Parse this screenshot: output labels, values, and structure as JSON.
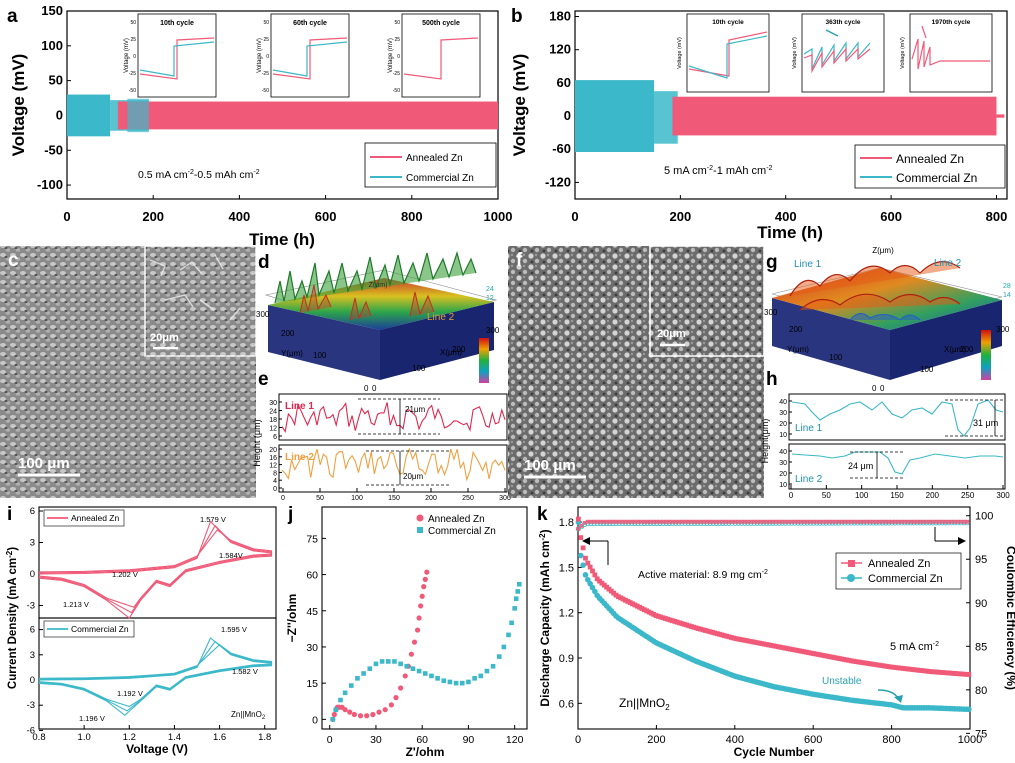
{
  "panels": {
    "a": "a",
    "b": "b",
    "c": "c",
    "d": "d",
    "e": "e",
    "f": "f",
    "g": "g",
    "h": "h",
    "i": "i",
    "j": "j",
    "k": "k"
  },
  "colors": {
    "annealed": "#f05a78",
    "commercial": "#3bb8c9",
    "line2": "#f0a040"
  },
  "chart_data": [
    {
      "id": "a",
      "type": "line",
      "xlabel": "Time (h)",
      "ylabel": "Voltage (mV)",
      "xticks": [
        0,
        200,
        400,
        600,
        800,
        1000
      ],
      "yticks": [
        -100,
        -50,
        0,
        50,
        100,
        150
      ],
      "xlim": [
        0,
        1000
      ],
      "ylim": [
        -120,
        150
      ],
      "legend": [
        "Annealed Zn",
        "Commercial Zn"
      ],
      "annotation": {
        "prefix": "0.5 mA cm",
        "sup1": "-2",
        "mid": "-0.5 mAh cm",
        "sup2": "-2"
      },
      "insets": [
        {
          "title": "10th cycle",
          "ylabel": "Voltage (mV)",
          "yticks": [
            "50",
            "25",
            "0",
            "-25",
            "-50"
          ]
        },
        {
          "title": "60th cycle",
          "ylabel": "Voltage (mV)",
          "yticks": [
            "50",
            "25",
            "0",
            "-25",
            "-50"
          ]
        },
        {
          "title": "500th cycle",
          "ylabel": "Voltage (mV)",
          "yticks": [
            "50",
            "25",
            "0",
            "-25",
            "-50"
          ]
        }
      ],
      "series": [
        {
          "name": "Annealed Zn",
          "band": [
            [
              110,
              18
            ],
            [
              1000,
              18
            ]
          ]
        },
        {
          "name": "Commercial Zn",
          "band": [
            [
              0,
              30
            ],
            [
              100,
              30
            ],
            [
              190,
              25
            ]
          ]
        }
      ]
    },
    {
      "id": "b",
      "type": "line",
      "xlabel": "Time (h)",
      "ylabel": "Voltage (mV)",
      "xticks": [
        0,
        200,
        400,
        600,
        800
      ],
      "yticks": [
        -120,
        -60,
        0,
        60,
        120,
        180
      ],
      "xlim": [
        0,
        820
      ],
      "ylim": [
        -150,
        190
      ],
      "legend": [
        "Annealed Zn",
        "Commercial Zn"
      ],
      "annotation": {
        "prefix": "5 mA cm",
        "sup1": "-2",
        "mid": "-1 mAh cm",
        "sup2": "-2"
      },
      "insets": [
        {
          "title": "10th cycle",
          "ylabel": "Voltage (mV)"
        },
        {
          "title": "363th cycle",
          "ylabel": "Voltage (mV)"
        },
        {
          "title": "1970th cycle",
          "ylabel": "Voltage (mV)"
        }
      ]
    },
    {
      "id": "e",
      "type": "line",
      "ylabel": "Height (μm)",
      "xticks": [
        0,
        50,
        100,
        150,
        200,
        250,
        300
      ],
      "line1": {
        "name": "Line 1",
        "yticks": [
          6,
          12,
          18,
          24,
          30
        ],
        "annotation": "21μm"
      },
      "line2": {
        "name": "Line 2",
        "yticks": [
          0,
          4,
          8,
          12,
          16,
          20
        ],
        "annotation": "20μm"
      }
    },
    {
      "id": "h",
      "type": "line",
      "ylabel": "Height(μm)",
      "xticks": [
        0,
        50,
        100,
        150,
        200,
        250,
        300
      ],
      "line1": {
        "name": "Line 1",
        "yticks": [
          10,
          20,
          30,
          40
        ],
        "annotation": "31 μm"
      },
      "line2": {
        "name": "Line 2",
        "yticks": [
          10,
          20,
          30,
          40
        ],
        "annotation": "24 μm"
      }
    },
    {
      "id": "i",
      "type": "line",
      "xlabel": "Voltage (V)",
      "ylabel": "Current Density (mA cm",
      "ylabel_sup": "-2",
      "ylabel_end": ")",
      "xticks": [
        "0.8",
        "1.0",
        "1.2",
        "1.4",
        "1.6",
        "1.8"
      ],
      "top": {
        "legend": "Annealed Zn",
        "yticks": [
          -3,
          0,
          3,
          6
        ],
        "labels": [
          "1.579 V",
          "1.584V",
          "1.202 V",
          "1.213 V"
        ]
      },
      "bottom": {
        "legend": "Commercial Zn",
        "yticks": [
          -6,
          -3,
          0,
          3,
          6
        ],
        "labels": [
          "1.595 V",
          "1.582 V",
          "1.192 V",
          "1.196 V"
        ],
        "note": "Zn||MnO",
        "note_sub": "2"
      }
    },
    {
      "id": "j",
      "type": "scatter",
      "xlabel": "Z'/ohm",
      "ylabel": "−Z''/ohm",
      "xticks": [
        0,
        30,
        60,
        90,
        120
      ],
      "yticks": [
        0,
        15,
        30,
        45,
        60,
        75
      ],
      "xlim": [
        -5,
        128
      ],
      "ylim": [
        -4,
        88
      ],
      "legend": [
        "Annealed Zn",
        "Commercial Zn"
      ],
      "series": [
        {
          "name": "Annealed Zn",
          "points": [
            [
              2,
              0
            ],
            [
              3,
              2
            ],
            [
              4,
              4
            ],
            [
              5,
              5
            ],
            [
              6,
              5
            ],
            [
              8,
              5
            ],
            [
              10,
              4
            ],
            [
              13,
              3
            ],
            [
              16,
              2
            ],
            [
              20,
              1.5
            ],
            [
              24,
              1.5
            ],
            [
              28,
              2
            ],
            [
              32,
              3
            ],
            [
              36,
              4
            ],
            [
              40,
              6
            ],
            [
              43,
              9
            ],
            [
              46,
              13
            ],
            [
              49,
              18
            ],
            [
              51,
              22
            ],
            [
              53,
              27
            ],
            [
              55,
              32
            ],
            [
              57,
              37
            ],
            [
              58,
              42
            ],
            [
              59,
              47
            ],
            [
              60,
              51
            ],
            [
              61,
              55
            ],
            [
              62,
              58
            ],
            [
              63,
              61
            ]
          ]
        },
        {
          "name": "Commercial Zn",
          "points": [
            [
              2,
              0
            ],
            [
              4,
              4
            ],
            [
              7,
              8
            ],
            [
              10,
              11
            ],
            [
              14,
              14
            ],
            [
              18,
              17
            ],
            [
              22,
              19
            ],
            [
              26,
              21
            ],
            [
              30,
              23
            ],
            [
              34,
              24
            ],
            [
              38,
              24
            ],
            [
              42,
              24
            ],
            [
              46,
              23
            ],
            [
              50,
              22
            ],
            [
              54,
              21
            ],
            [
              58,
              20
            ],
            [
              62,
              19
            ],
            [
              66,
              18
            ],
            [
              70,
              17
            ],
            [
              74,
              16
            ],
            [
              78,
              15.5
            ],
            [
              82,
              15
            ],
            [
              86,
              15
            ],
            [
              90,
              15.5
            ],
            [
              94,
              17
            ],
            [
              98,
              18
            ],
            [
              102,
              20
            ],
            [
              106,
              22
            ],
            [
              110,
              26
            ],
            [
              113,
              30
            ],
            [
              116,
              35
            ],
            [
              118,
              40
            ],
            [
              120,
              46
            ],
            [
              121,
              50
            ],
            [
              122,
              53
            ],
            [
              123,
              56
            ]
          ]
        }
      ]
    },
    {
      "id": "k",
      "type": "scatter",
      "xlabel": "Cycle Number",
      "ylabel": "Discharge Capacity (mAh cm",
      "ylabel_sup": "-2",
      "ylabel_end": ")",
      "y2label": "Coulombic Efficiency (%)",
      "xticks": [
        0,
        200,
        400,
        600,
        800,
        1000
      ],
      "yticks": [
        "0.6",
        "0.9",
        "1.2",
        "1.5",
        "1.8"
      ],
      "y2ticks": [
        75,
        80,
        85,
        90,
        95,
        100
      ],
      "xlim": [
        0,
        1000
      ],
      "ylim": [
        0.43,
        1.9
      ],
      "y2lim": [
        75.5,
        101
      ],
      "legend": [
        "Annealed Zn",
        "Commercial Zn"
      ],
      "annotations": {
        "active_prefix": "Active material: 8.9 mg cm",
        "active_sup": "-2",
        "rate_prefix": "5 mA cm",
        "rate_sup": "-2",
        "unstable": "Unstable",
        "cell": "Zn||MnO",
        "cell_sub": "2"
      },
      "series": [
        {
          "name": "Annealed Zn",
          "capacity": [
            [
              1,
              1.82
            ],
            [
              5,
              1.72
            ],
            [
              20,
              1.55
            ],
            [
              50,
              1.42
            ],
            [
              100,
              1.31
            ],
            [
              200,
              1.18
            ],
            [
              300,
              1.1
            ],
            [
              400,
              1.03
            ],
            [
              500,
              0.98
            ],
            [
              600,
              0.93
            ],
            [
              700,
              0.88
            ],
            [
              800,
              0.84
            ],
            [
              900,
              0.81
            ],
            [
              1000,
              0.79
            ]
          ],
          "ce": [
            [
              1,
              98.5
            ],
            [
              20,
              99.3
            ],
            [
              1000,
              99.3
            ]
          ]
        },
        {
          "name": "Commercial Zn",
          "capacity": [
            [
              1,
              1.8
            ],
            [
              5,
              1.6
            ],
            [
              20,
              1.44
            ],
            [
              50,
              1.31
            ],
            [
              100,
              1.17
            ],
            [
              200,
              1.0
            ],
            [
              300,
              0.88
            ],
            [
              400,
              0.78
            ],
            [
              500,
              0.71
            ],
            [
              600,
              0.66
            ],
            [
              700,
              0.62
            ],
            [
              800,
              0.59
            ],
            [
              830,
              0.57
            ],
            [
              900,
              0.57
            ],
            [
              1000,
              0.56
            ]
          ],
          "ce": [
            [
              1,
              98.5
            ],
            [
              20,
              99.1
            ],
            [
              1000,
              99.2
            ]
          ]
        }
      ]
    }
  ],
  "images": {
    "c_scale": "100 μm",
    "c_inset_scale": "20μm",
    "f_scale": "100 μm",
    "f_inset_scale": "20μm"
  },
  "d_3d": {
    "z_axis": "Z(μm)",
    "y_axis": "Y(μm)",
    "x_axis": "X(μm)",
    "line2": "Line 2",
    "ticks": [
      "300",
      "200",
      "100",
      "0",
      "0",
      "100",
      "200",
      "300"
    ],
    "z_ticks": [
      "24",
      "12"
    ]
  },
  "g_3d": {
    "z_axis": "Z(μm)",
    "y_axis": "Y(μm)",
    "x_axis": "X(μm)",
    "line1": "Line 1",
    "line2": "Line 2",
    "ticks": [
      "300",
      "200",
      "100",
      "0",
      "0",
      "100",
      "200",
      "300"
    ],
    "z_ticks": [
      "28",
      "14"
    ]
  }
}
